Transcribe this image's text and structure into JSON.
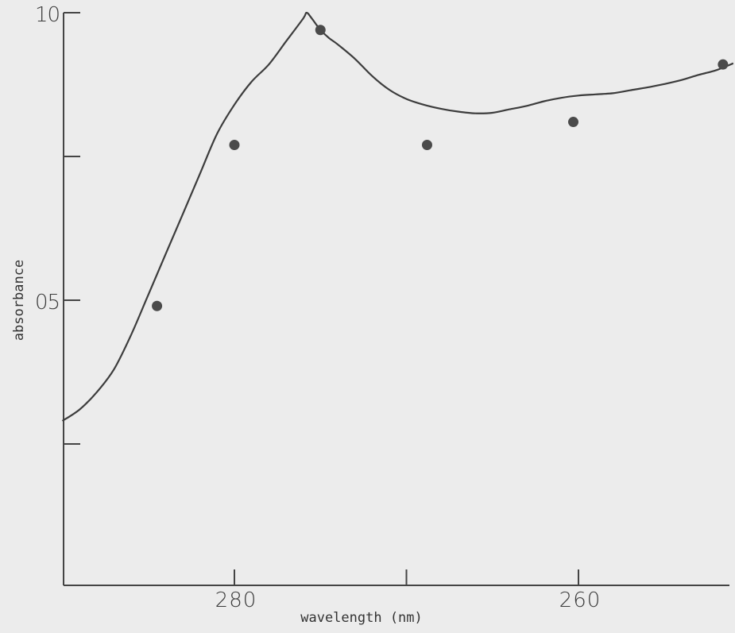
{
  "chart_data": {
    "type": "line",
    "title": "",
    "xlabel": "wavelength (nm)",
    "ylabel": "absorbance",
    "xlim": [
      290,
      251
    ],
    "ylim": [
      0,
      1.0
    ],
    "grid": false,
    "legend": "none",
    "x_ticks": [
      280,
      270,
      260
    ],
    "x_tick_labels": [
      "280",
      "",
      "260"
    ],
    "y_ticks": [
      0.25,
      0.5,
      0.75,
      1.0
    ],
    "y_tick_labels": [
      "",
      "05",
      "",
      "10"
    ],
    "series": [
      {
        "kind": "curve",
        "x": [
          290,
          289,
          288,
          287,
          286,
          285,
          284,
          283,
          282,
          281,
          280,
          279,
          278,
          277,
          276,
          275.8,
          275.5,
          275,
          274.5,
          274,
          273,
          272,
          271,
          270,
          269,
          268,
          267,
          266,
          265,
          264,
          263,
          262,
          261,
          260,
          259,
          258,
          257,
          256,
          255,
          254,
          253,
          252,
          251
        ],
        "y": [
          0.29,
          0.31,
          0.34,
          0.38,
          0.44,
          0.51,
          0.58,
          0.65,
          0.72,
          0.79,
          0.84,
          0.88,
          0.91,
          0.95,
          0.99,
          1.0,
          0.99,
          0.97,
          0.956,
          0.945,
          0.92,
          0.89,
          0.866,
          0.85,
          0.84,
          0.833,
          0.828,
          0.825,
          0.826,
          0.832,
          0.838,
          0.846,
          0.852,
          0.856,
          0.858,
          0.86,
          0.865,
          0.87,
          0.876,
          0.883,
          0.892,
          0.9,
          0.912
        ]
      },
      {
        "kind": "points",
        "x": [
          284.5,
          280,
          275,
          268.8,
          260.3,
          251.6
        ],
        "y": [
          0.49,
          0.77,
          0.97,
          0.77,
          0.81,
          0.91
        ]
      }
    ]
  }
}
